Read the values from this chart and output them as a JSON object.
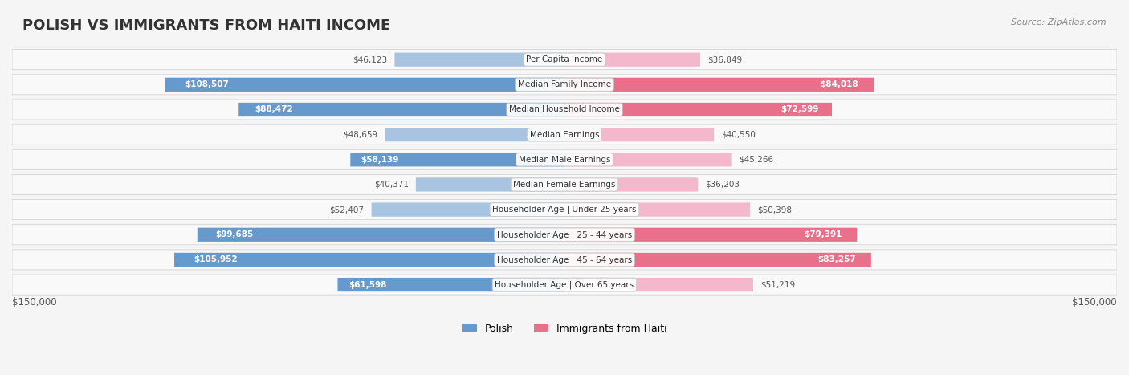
{
  "title": "POLISH VS IMMIGRANTS FROM HAITI INCOME",
  "source": "Source: ZipAtlas.com",
  "categories": [
    "Per Capita Income",
    "Median Family Income",
    "Median Household Income",
    "Median Earnings",
    "Median Male Earnings",
    "Median Female Earnings",
    "Householder Age | Under 25 years",
    "Householder Age | 25 - 44 years",
    "Householder Age | 45 - 64 years",
    "Householder Age | Over 65 years"
  ],
  "polish_values": [
    46123,
    108507,
    88472,
    48659,
    58139,
    40371,
    52407,
    99685,
    105952,
    61598
  ],
  "haiti_values": [
    36849,
    84018,
    72599,
    40550,
    45266,
    36203,
    50398,
    79391,
    83257,
    51219
  ],
  "polish_labels": [
    "$46,123",
    "$108,507",
    "$88,472",
    "$48,659",
    "$58,139",
    "$40,371",
    "$52,407",
    "$99,685",
    "$105,952",
    "$61,598"
  ],
  "haiti_labels": [
    "$36,849",
    "$84,018",
    "$72,599",
    "$40,550",
    "$45,266",
    "$36,203",
    "$50,398",
    "$79,391",
    "$83,257",
    "$51,219"
  ],
  "polish_color_light": "#a8c4e0",
  "polish_color_dark": "#6699cc",
  "haiti_color_light": "#f4b8cc",
  "haiti_color_dark": "#e8708a",
  "max_value": 150000,
  "legend_polish": "Polish",
  "legend_haiti": "Immigrants from Haiti",
  "x_label_left": "$150,000",
  "x_label_right": "$150,000",
  "background_color": "#f5f5f5",
  "row_bg_color": "#ffffff",
  "title_color": "#333333",
  "label_color": "#555555",
  "category_bg": "#f0f0f0"
}
